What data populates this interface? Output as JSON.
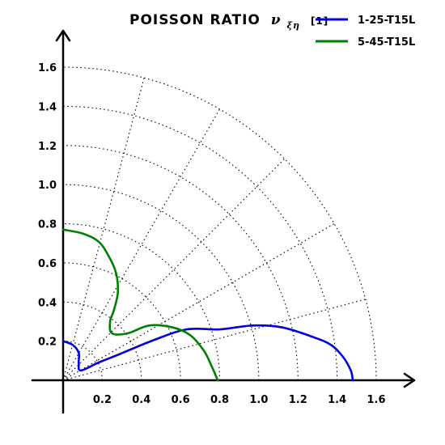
{
  "chart_data": {
    "type": "line",
    "title": "POISSON RATIO",
    "title_symbol": "ν",
    "title_subscript": "ξη",
    "title_unit": "[1]",
    "plot_style": "polar quarter-plane (hand-drawn)",
    "grid": true,
    "legend_position": "top-right",
    "xlim": [
      0,
      1.6
    ],
    "ylim": [
      0,
      1.6
    ],
    "x_ticks": [
      "0.2",
      "0.4",
      "0.6",
      "0.8",
      "1.0",
      "1.2",
      "1.4",
      "1.6"
    ],
    "y_ticks": [
      "0.2",
      "0.4",
      "0.6",
      "0.8",
      "1.0",
      "1.2",
      "1.4",
      "1.6"
    ],
    "series": [
      {
        "name": "1-25-T15L",
        "color": "#0000dd",
        "points": [
          [
            0.0,
            0.2
          ],
          [
            0.05,
            0.18
          ],
          [
            0.08,
            0.14
          ],
          [
            0.08,
            0.09
          ],
          [
            0.09,
            0.05
          ],
          [
            0.18,
            0.09
          ],
          [
            0.28,
            0.13
          ],
          [
            0.45,
            0.2
          ],
          [
            0.63,
            0.26
          ],
          [
            0.8,
            0.26
          ],
          [
            0.97,
            0.28
          ],
          [
            1.12,
            0.27
          ],
          [
            1.28,
            0.22
          ],
          [
            1.37,
            0.18
          ],
          [
            1.43,
            0.12
          ],
          [
            1.47,
            0.05
          ],
          [
            1.48,
            0.0
          ]
        ]
      },
      {
        "name": "5-45-T15L",
        "color": "#008000",
        "points": [
          [
            0.0,
            0.77
          ],
          [
            0.1,
            0.75
          ],
          [
            0.18,
            0.71
          ],
          [
            0.23,
            0.64
          ],
          [
            0.27,
            0.55
          ],
          [
            0.28,
            0.45
          ],
          [
            0.26,
            0.36
          ],
          [
            0.24,
            0.3
          ],
          [
            0.25,
            0.24
          ],
          [
            0.33,
            0.24
          ],
          [
            0.44,
            0.28
          ],
          [
            0.56,
            0.27
          ],
          [
            0.65,
            0.23
          ],
          [
            0.72,
            0.15
          ],
          [
            0.76,
            0.07
          ],
          [
            0.79,
            0.0
          ]
        ]
      }
    ]
  }
}
